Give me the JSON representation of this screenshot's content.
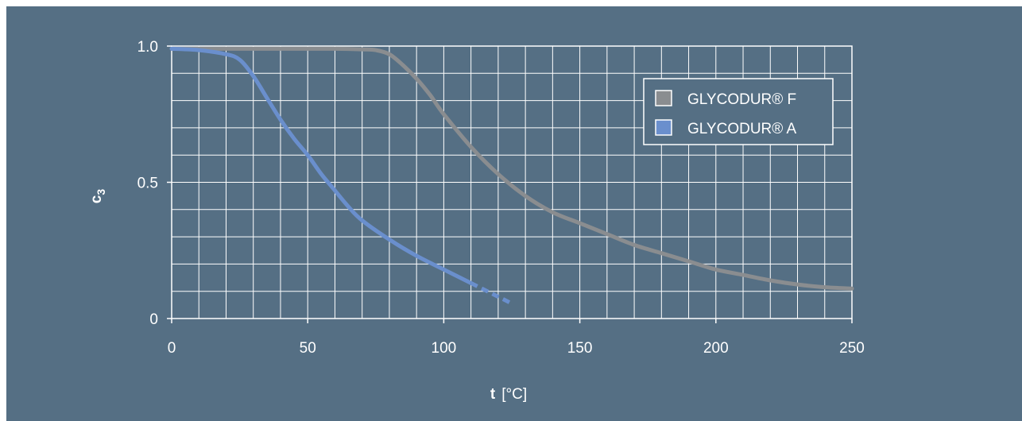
{
  "chart_data": {
    "type": "line",
    "x_range": [
      0,
      250
    ],
    "y_range": [
      0,
      1.0
    ],
    "x_ticks": [
      "0",
      "50",
      "100",
      "150",
      "200",
      "250"
    ],
    "x_tick_values": [
      0,
      50,
      100,
      150,
      200,
      250
    ],
    "y_ticks": [
      "0",
      "0.5",
      "1.0"
    ],
    "y_tick_values": [
      0,
      0.5,
      1.0
    ],
    "grid": true,
    "xlabel": {
      "symbol": "t",
      "unit": "[°C]"
    },
    "ylabel": {
      "symbol": "c",
      "subscript": "3"
    },
    "legend_placement": "top-right",
    "series": [
      {
        "name": "GLYCODUR® F",
        "color": "#8a8d90",
        "points": [
          [
            0,
            0.99
          ],
          [
            20,
            0.99
          ],
          [
            40,
            0.99
          ],
          [
            60,
            0.99
          ],
          [
            70,
            0.988
          ],
          [
            75,
            0.985
          ],
          [
            80,
            0.97
          ],
          [
            85,
            0.93
          ],
          [
            90,
            0.88
          ],
          [
            95,
            0.82
          ],
          [
            100,
            0.75
          ],
          [
            110,
            0.63
          ],
          [
            120,
            0.53
          ],
          [
            130,
            0.45
          ],
          [
            140,
            0.39
          ],
          [
            150,
            0.35
          ],
          [
            160,
            0.31
          ],
          [
            170,
            0.27
          ],
          [
            180,
            0.24
          ],
          [
            190,
            0.21
          ],
          [
            200,
            0.18
          ],
          [
            210,
            0.16
          ],
          [
            220,
            0.14
          ],
          [
            230,
            0.125
          ],
          [
            240,
            0.115
          ],
          [
            250,
            0.11
          ]
        ]
      },
      {
        "name": "GLYCODUR® A",
        "color": "#6a8fcd",
        "dashed_from_x": 112,
        "points": [
          [
            0,
            0.99
          ],
          [
            10,
            0.985
          ],
          [
            20,
            0.97
          ],
          [
            25,
            0.95
          ],
          [
            30,
            0.89
          ],
          [
            35,
            0.81
          ],
          [
            40,
            0.73
          ],
          [
            45,
            0.66
          ],
          [
            50,
            0.6
          ],
          [
            55,
            0.53
          ],
          [
            60,
            0.47
          ],
          [
            65,
            0.41
          ],
          [
            70,
            0.36
          ],
          [
            80,
            0.29
          ],
          [
            90,
            0.23
          ],
          [
            100,
            0.18
          ],
          [
            110,
            0.13
          ],
          [
            118,
            0.09
          ],
          [
            125,
            0.055
          ]
        ]
      }
    ]
  }
}
